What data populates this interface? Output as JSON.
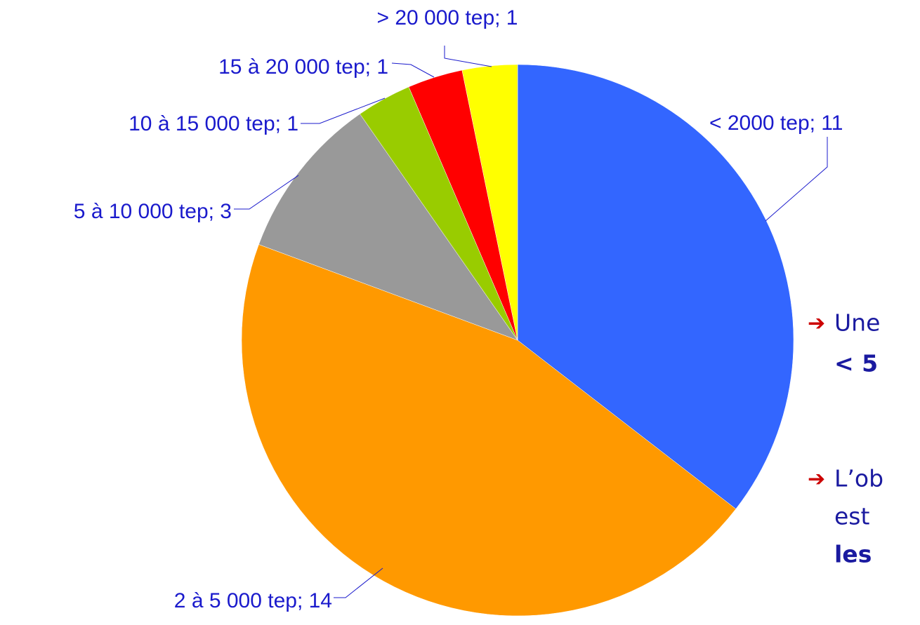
{
  "chart_data": {
    "type": "pie",
    "values": [
      11,
      14,
      3,
      1,
      1,
      1
    ],
    "value_labels": [
      "< 2000 tep; 11",
      "2 à 5 000 tep; 14",
      "5 à 10 000 tep; 3",
      "10 à 15 000 tep; 1",
      "15 à 20 000 tep; 1",
      "> 20 000 tep; 1"
    ],
    "colors": [
      "#3366ff",
      "#ff9900",
      "#999999",
      "#99cc00",
      "#ff0000",
      "#ffff00"
    ]
  },
  "notes": [
    {
      "marker": "➔",
      "lines": [
        "Une",
        "< 5"
      ]
    },
    {
      "marker": "➔",
      "lines": [
        "L’ob",
        "est",
        "les"
      ]
    }
  ]
}
